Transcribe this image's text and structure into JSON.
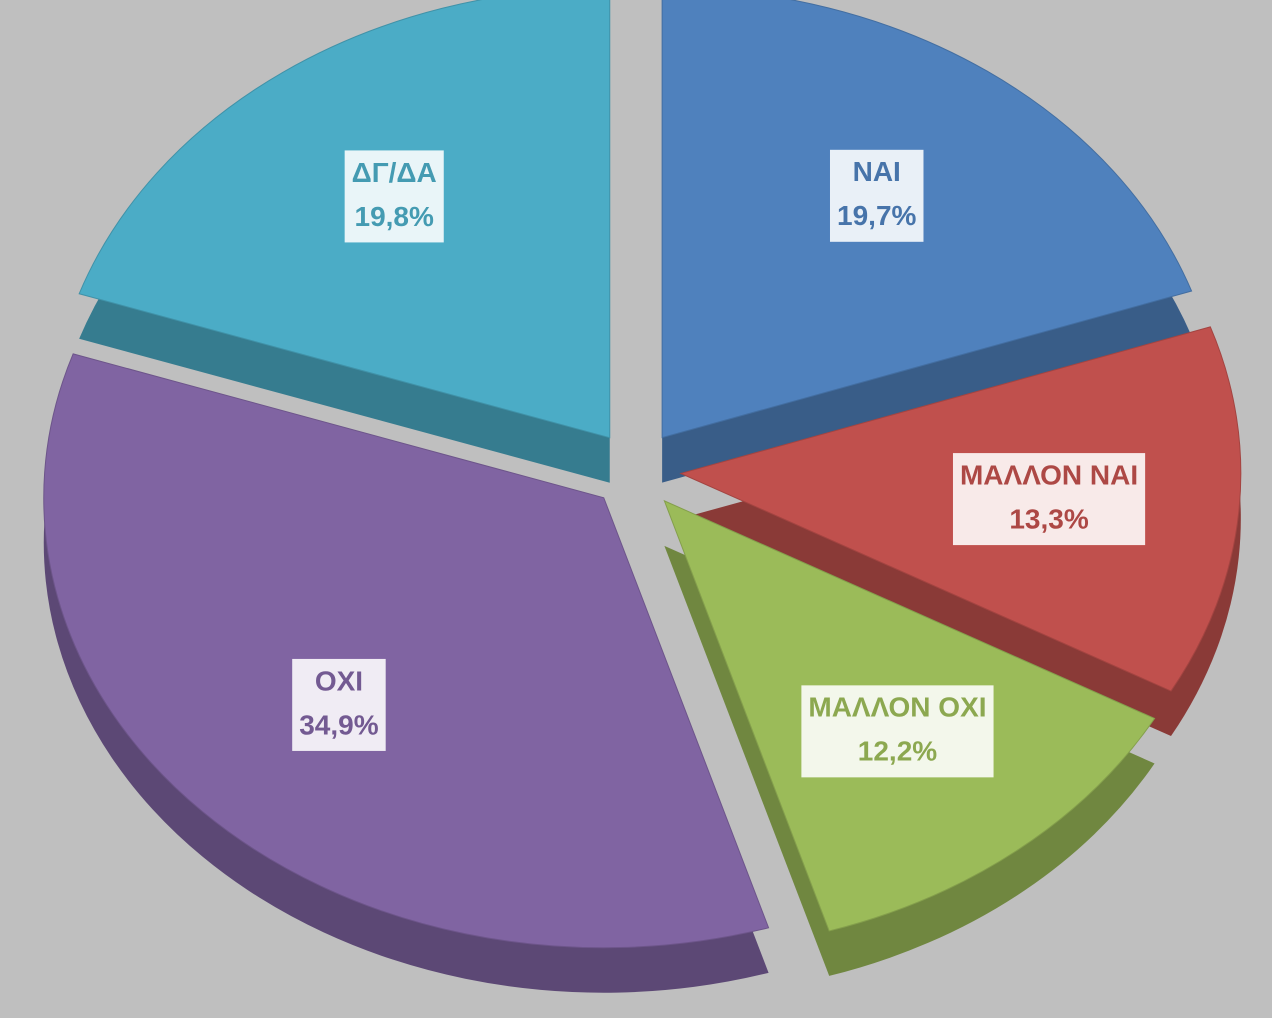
{
  "chart_data": {
    "type": "pie",
    "categories": [
      "ΝΑΙ",
      "ΜΑΛΛΟΝ ΝΑΙ",
      "ΜΑΛΛΟΝ ΟΧΙ",
      "ΟΧΙ",
      "ΔΓ/ΔΑ"
    ],
    "values": [
      19.7,
      13.3,
      12.2,
      34.9,
      19.8
    ],
    "value_labels": [
      "19,7%",
      "13,3%",
      "12,2%",
      "34,9%",
      "19,8%"
    ],
    "colors": [
      "#4f81bd",
      "#c0504d",
      "#9bbb59",
      "#8064a2",
      "#4bacc6"
    ]
  }
}
